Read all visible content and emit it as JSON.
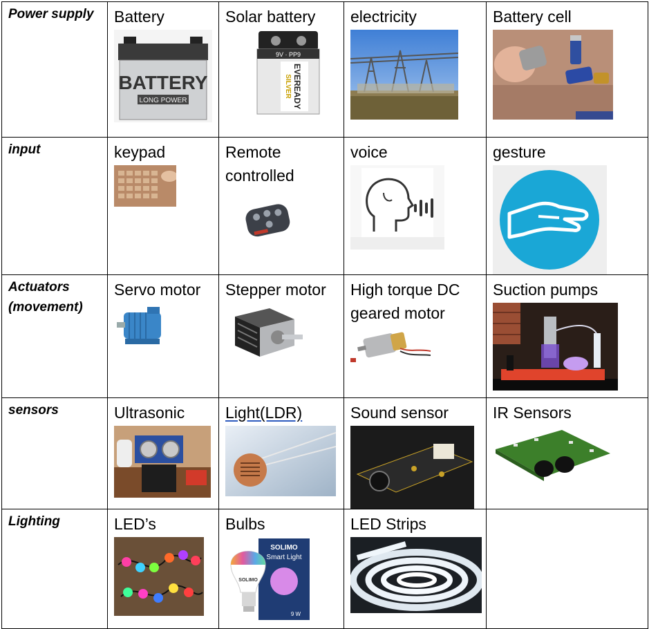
{
  "rows": [
    {
      "category": "Power supply",
      "items": [
        {
          "label": "Battery",
          "icon": "car-battery-icon"
        },
        {
          "label": "Solar battery",
          "icon": "9v-battery-icon"
        },
        {
          "label": "electricity",
          "icon": "power-station-icon"
        },
        {
          "label": "Battery cell",
          "icon": "battery-cells-icon"
        }
      ]
    },
    {
      "category": "input",
      "items": [
        {
          "label": "keypad",
          "icon": "keypad-icon"
        },
        {
          "label": "Remote controlled",
          "icon": "remote-fob-icon"
        },
        {
          "label": "voice",
          "icon": "voice-head-icon"
        },
        {
          "label": "gesture",
          "icon": "gesture-hand-icon"
        }
      ]
    },
    {
      "category": "Actuators (movement)",
      "items": [
        {
          "label": "Servo motor",
          "icon": "servo-motor-icon"
        },
        {
          "label": "Stepper motor",
          "icon": "stepper-motor-icon"
        },
        {
          "label": "High torque DC geared motor",
          "icon": "dc-geared-motor-icon"
        },
        {
          "label": "Suction pumps",
          "icon": "suction-pumps-icon"
        }
      ]
    },
    {
      "category": "sensors",
      "items": [
        {
          "label": "Ultrasonic",
          "icon": "ultrasonic-sensor-icon"
        },
        {
          "label": "Light(LDR)",
          "icon": "ldr-icon"
        },
        {
          "label": "Sound sensor",
          "icon": "sound-sensor-icon"
        },
        {
          "label": "IR Sensors",
          "icon": "ir-sensor-icon"
        }
      ]
    },
    {
      "category": "Lighting",
      "items": [
        {
          "label": "LED’s",
          "icon": "led-string-icon"
        },
        {
          "label": "Bulbs",
          "icon": "smart-bulb-icon"
        },
        {
          "label": "LED Strips",
          "icon": "led-strip-icon"
        }
      ]
    }
  ],
  "images": {
    "car_battery_text": "BATTERY",
    "car_battery_subtext": "LONG POWER",
    "nine_volt_text": "9V · PP9",
    "nine_volt_brand": "EVEREADY",
    "nine_volt_model": "SILVER",
    "bulb_box_brand": "SOLIMO",
    "bulb_box_title": "Smart Light",
    "bulb_brand": "SOLIMO",
    "bulb_watt": "9 W"
  },
  "colors": {
    "border": "#000000",
    "gesture_circle": "#1aa7d6",
    "servo_blue": "#3a86c8",
    "pcb_green": "#3c7f2a",
    "ldr_underline": "#2d5bbf"
  }
}
